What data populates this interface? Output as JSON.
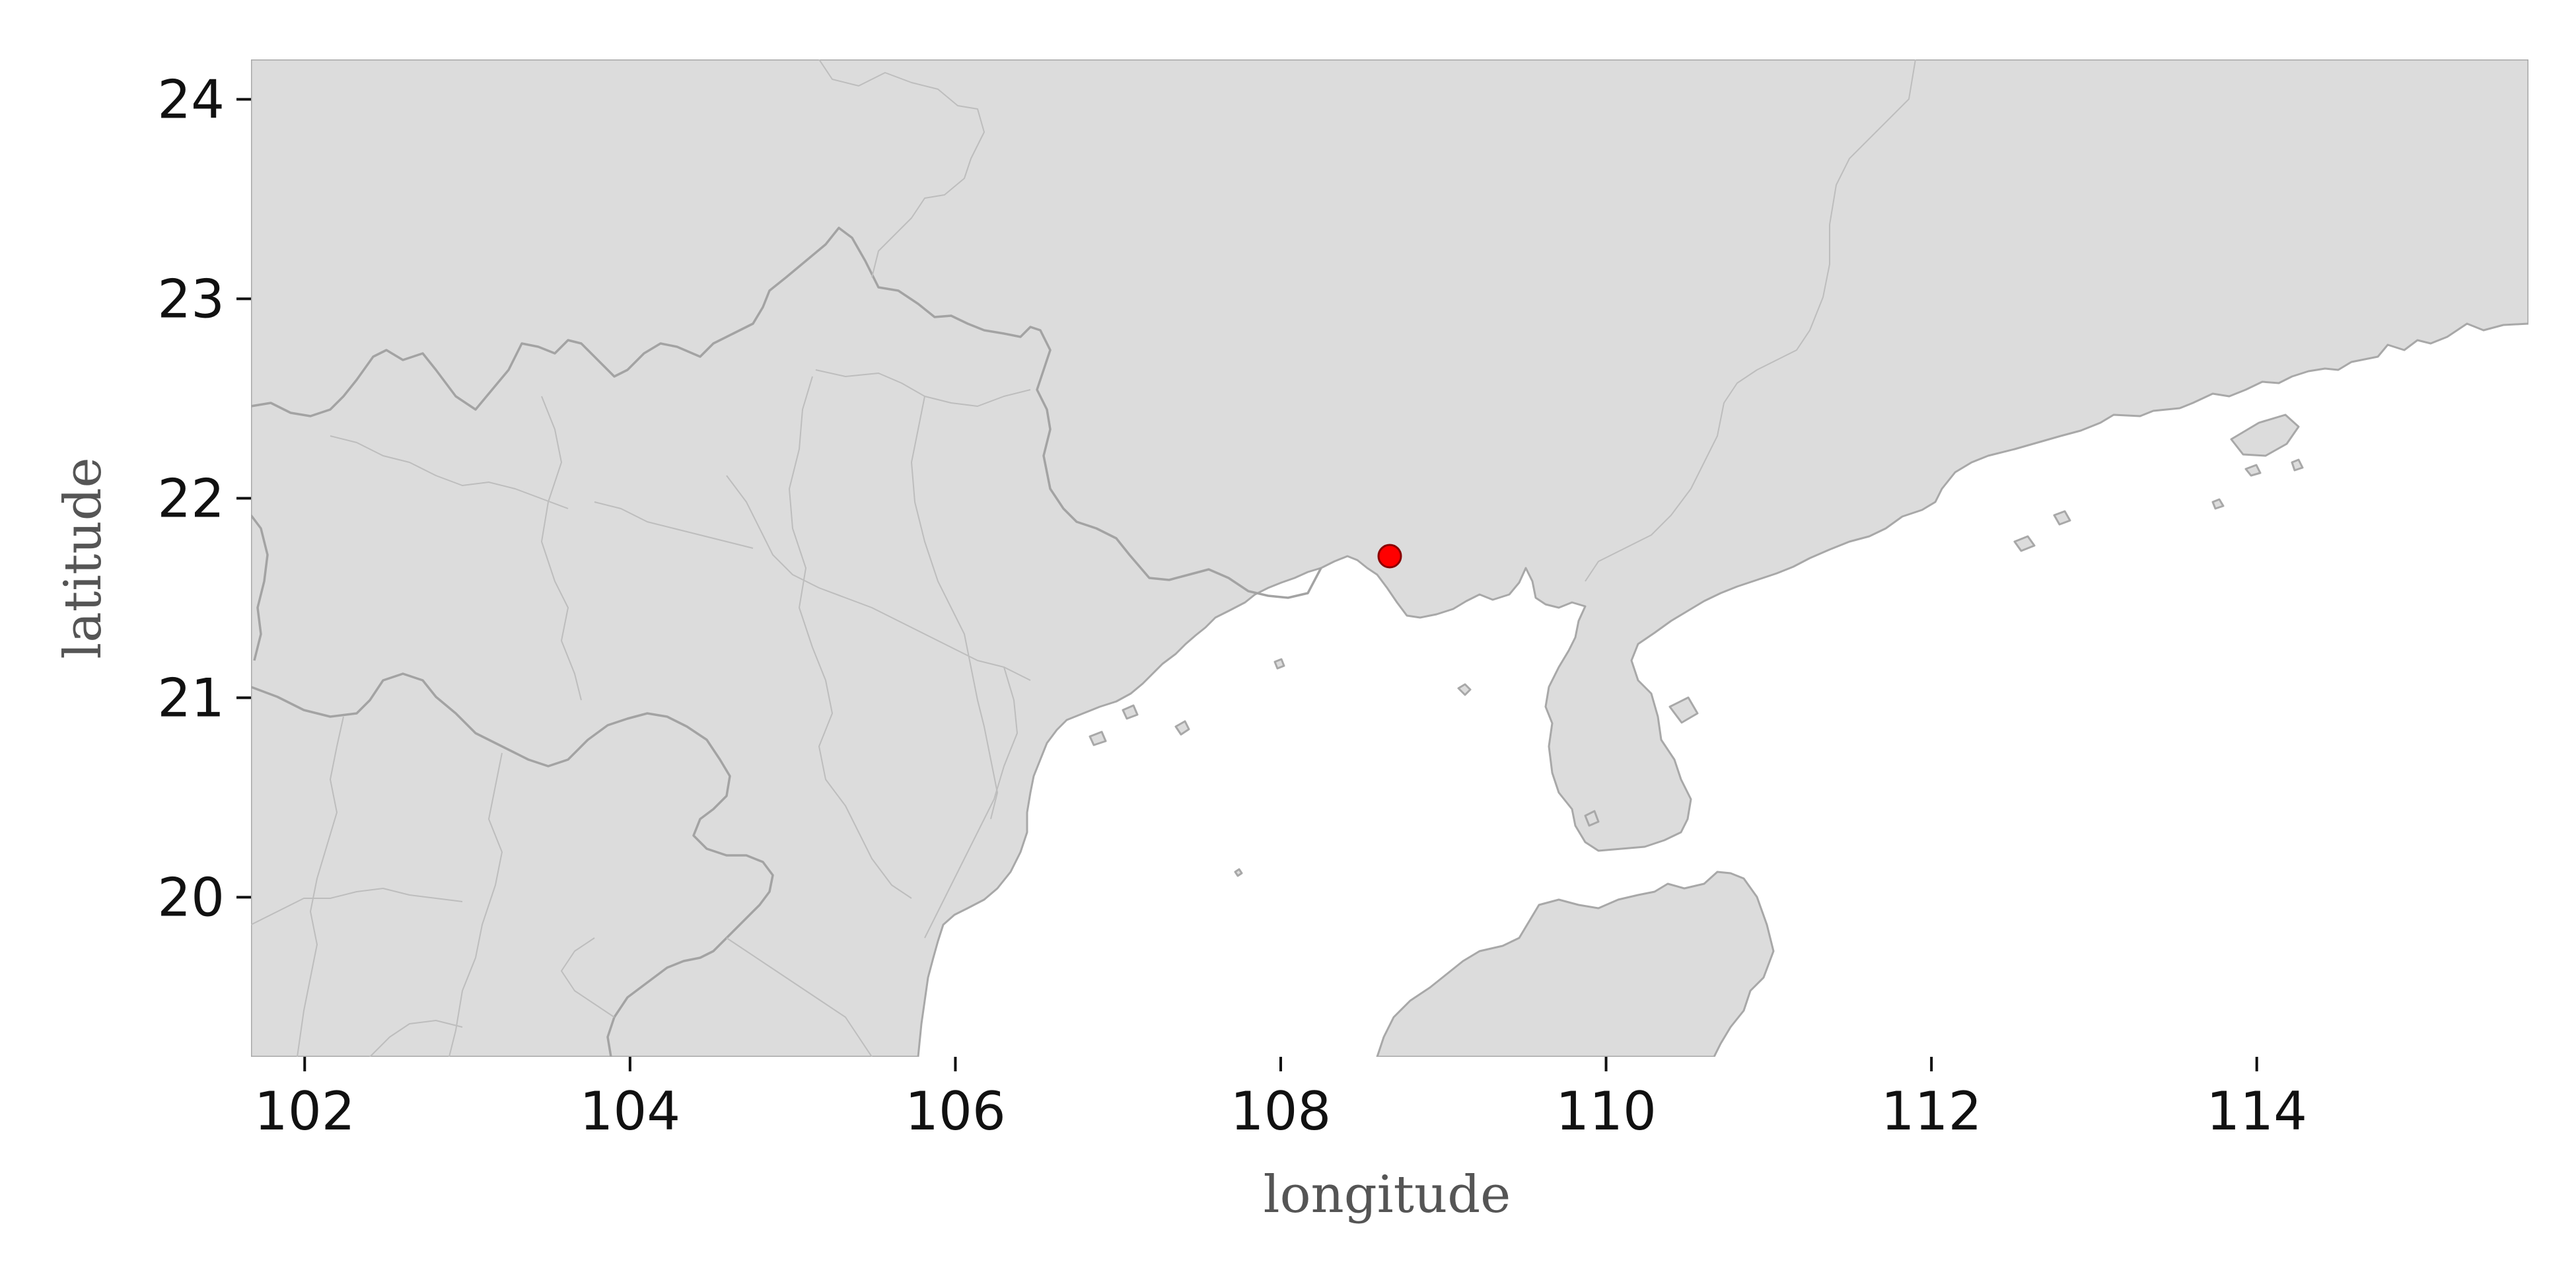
{
  "chart_data": {
    "type": "map",
    "title": "",
    "xlabel": "longitude",
    "ylabel": "latitude",
    "xlim": [
      101.67,
      115.67
    ],
    "ylim": [
      19.2,
      24.2
    ],
    "xticks": [
      102,
      104,
      106,
      108,
      110,
      112,
      114
    ],
    "yticks": [
      20,
      21,
      22,
      23,
      24
    ],
    "grid": false,
    "colors": {
      "land": "#dcdcdc",
      "boundary": "#a8a8a8",
      "marker": "#ff0000"
    },
    "points": [
      {
        "lon": 108.67,
        "lat": 21.71,
        "color": "#ff0000"
      }
    ]
  }
}
